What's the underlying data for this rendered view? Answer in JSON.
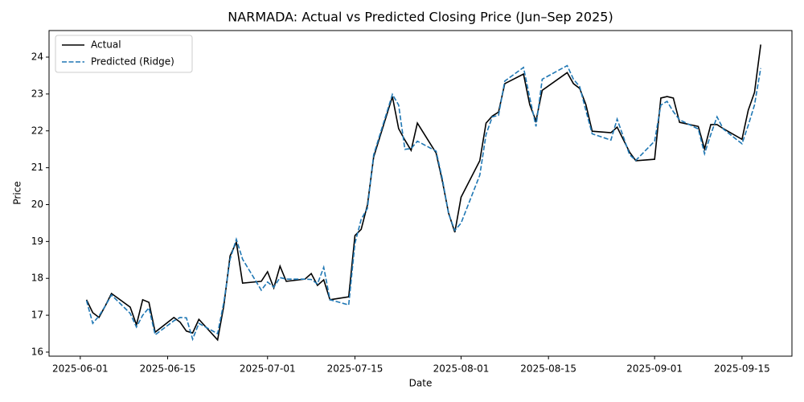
{
  "chart_data": {
    "type": "line",
    "title": "NARMADA: Actual vs Predicted Closing Price (Jun–Sep 2025)",
    "x_label": "Date",
    "y_label": "Price",
    "x": [
      "2025-06-02",
      "2025-06-03",
      "2025-06-04",
      "2025-06-05",
      "2025-06-06",
      "2025-06-09",
      "2025-06-10",
      "2025-06-11",
      "2025-06-12",
      "2025-06-13",
      "2025-06-16",
      "2025-06-17",
      "2025-06-18",
      "2025-06-19",
      "2025-06-20",
      "2025-06-23",
      "2025-06-24",
      "2025-06-25",
      "2025-06-26",
      "2025-06-27",
      "2025-06-30",
      "2025-07-01",
      "2025-07-02",
      "2025-07-03",
      "2025-07-04",
      "2025-07-07",
      "2025-07-08",
      "2025-07-09",
      "2025-07-10",
      "2025-07-11",
      "2025-07-14",
      "2025-07-15",
      "2025-07-16",
      "2025-07-17",
      "2025-07-18",
      "2025-07-21",
      "2025-07-22",
      "2025-07-23",
      "2025-07-24",
      "2025-07-25",
      "2025-07-28",
      "2025-07-29",
      "2025-07-30",
      "2025-07-31",
      "2025-08-01",
      "2025-08-04",
      "2025-08-05",
      "2025-08-06",
      "2025-08-07",
      "2025-08-08",
      "2025-08-11",
      "2025-08-12",
      "2025-08-13",
      "2025-08-14",
      "2025-08-18",
      "2025-08-19",
      "2025-08-20",
      "2025-08-21",
      "2025-08-22",
      "2025-08-25",
      "2025-08-26",
      "2025-08-28",
      "2025-08-29",
      "2025-09-01",
      "2025-09-02",
      "2025-09-03",
      "2025-09-04",
      "2025-09-05",
      "2025-09-08",
      "2025-09-09",
      "2025-09-10",
      "2025-09-11",
      "2025-09-12",
      "2025-09-15",
      "2025-09-16",
      "2025-09-17",
      "2025-09-18"
    ],
    "series": [
      {
        "name": "Actual",
        "color": "#000000",
        "dash": "solid",
        "values": [
          17.42,
          17.07,
          16.94,
          17.25,
          17.59,
          17.22,
          16.74,
          17.42,
          17.35,
          16.54,
          16.94,
          16.81,
          16.57,
          16.52,
          16.89,
          16.33,
          17.26,
          18.61,
          18.98,
          17.87,
          17.92,
          18.18,
          17.74,
          18.33,
          17.92,
          17.98,
          18.13,
          17.81,
          17.96,
          17.42,
          17.5,
          19.16,
          19.33,
          19.99,
          21.29,
          22.93,
          22.06,
          21.75,
          21.47,
          22.21,
          21.4,
          20.64,
          19.77,
          19.25,
          20.2,
          21.19,
          22.21,
          22.4,
          22.51,
          23.28,
          23.54,
          22.71,
          22.27,
          23.1,
          23.58,
          23.28,
          23.15,
          22.71,
          21.99,
          21.95,
          22.1,
          21.42,
          21.19,
          21.23,
          22.89,
          22.93,
          22.89,
          22.23,
          22.12,
          21.51,
          22.17,
          22.17,
          22.06,
          21.77,
          22.56,
          23.04,
          24.34
        ]
      },
      {
        "name": "Predicted (Ridge)",
        "color": "#1f77b4",
        "dash": "dashed",
        "values": [
          17.4,
          16.78,
          16.98,
          17.25,
          17.55,
          17.05,
          16.68,
          17.0,
          17.2,
          16.47,
          16.85,
          16.94,
          16.93,
          16.35,
          16.78,
          16.5,
          17.35,
          18.52,
          19.06,
          18.52,
          17.68,
          17.9,
          17.76,
          18.02,
          17.98,
          17.98,
          17.97,
          17.85,
          18.3,
          17.42,
          17.28,
          18.95,
          19.6,
          19.9,
          21.35,
          22.99,
          22.7,
          21.5,
          21.52,
          21.72,
          21.45,
          20.7,
          19.75,
          19.3,
          19.5,
          20.8,
          21.9,
          22.38,
          22.42,
          23.35,
          23.72,
          22.9,
          22.12,
          23.4,
          23.77,
          23.4,
          23.2,
          22.55,
          21.92,
          21.75,
          22.32,
          21.35,
          21.2,
          21.72,
          22.7,
          22.8,
          22.52,
          22.3,
          22.05,
          21.38,
          21.9,
          22.38,
          22.05,
          21.65,
          22.15,
          22.7,
          23.7
        ]
      }
    ],
    "xlim": [
      "2025-05-27",
      "2025-09-23"
    ],
    "xticks": [
      "2025-06-01",
      "2025-06-15",
      "2025-07-01",
      "2025-07-15",
      "2025-08-01",
      "2025-08-15",
      "2025-09-01",
      "2025-09-15"
    ],
    "ylim": [
      15.89,
      24.72
    ],
    "yticks": [
      16,
      17,
      18,
      19,
      20,
      21,
      22,
      23,
      24
    ],
    "grid": false,
    "legend": "upper left"
  }
}
